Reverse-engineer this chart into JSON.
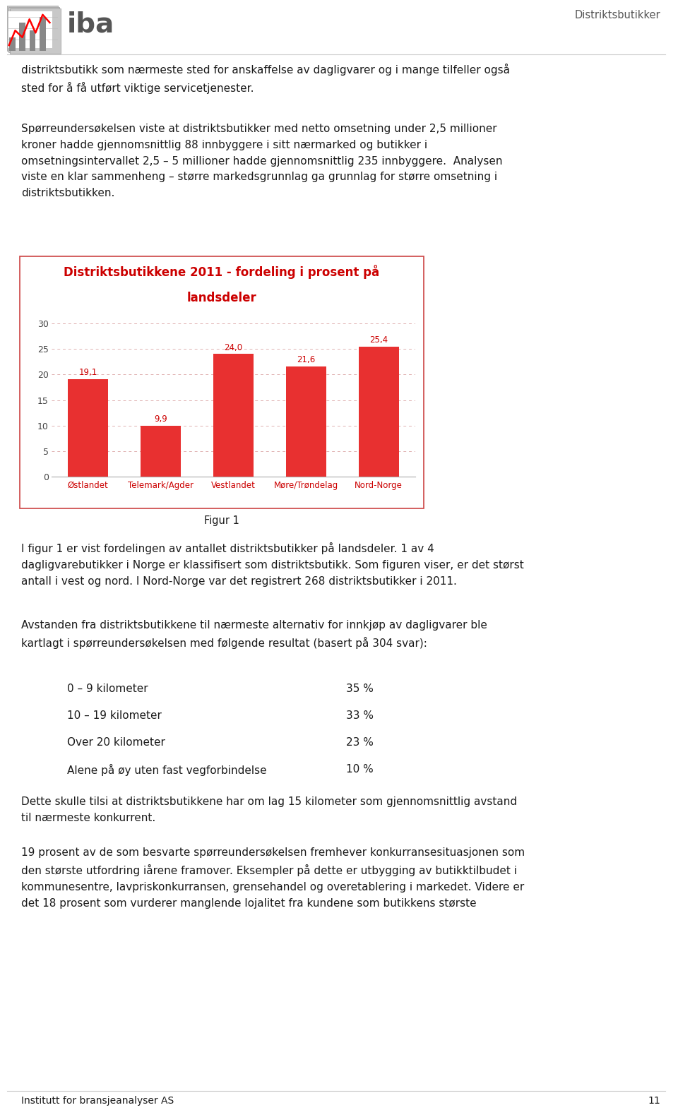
{
  "page_bg": "#ffffff",
  "header_right_text": "Distriktsbutikker",
  "header_line_color": "#cccccc",
  "para1": "distriktsbutikk som nærmeste sted for anskaffelse av dagligvarer og i mange tilfeller også\nsted for å få utført viktige servicetjenester.",
  "para2": "Spørreundersøkelsen viste at distriktsbutikker med netto omsetning under 2,5 millioner\nkroner hadde gjennomsnittlig 88 innbyggere i sitt nærmarked og butikker i\nomsetningsintervallet 2,5 – 5 millioner hadde gjennomsnittlig 235 innbyggere.  Analysen\nviste en klar sammenheng – større markedsgrunnlag ga grunnlag for større omsetning i\ndistriktsbutikken.",
  "chart_title_line1": "Distriktsbutikkene 2011 - fordeling i prosent på",
  "chart_title_line2": "landsdeler",
  "chart_title_color": "#cc0000",
  "categories": [
    "Østlandet",
    "Telemark/Agder",
    "Vestlandet",
    "Møre/Trøndelag",
    "Nord-Norge"
  ],
  "values": [
    19.1,
    9.9,
    24.0,
    21.6,
    25.4
  ],
  "bar_color": "#e83030",
  "chart_border_color": "#cc4444",
  "chart_bg": "#ffffff",
  "grid_color": "#e0b0b0",
  "yticks": [
    0,
    5,
    10,
    15,
    20,
    25,
    30
  ],
  "ylim": [
    0,
    30
  ],
  "figur_label": "Figur 1",
  "para3": "I figur 1 er vist fordelingen av antallet distriktsbutikker på landsdeler. 1 av 4\ndagligvarebutikker i Norge er klassifisert som distriktsbutikk. Som figuren viser, er det størst\nantall i vest og nord. I Nord-Norge var det registrert 268 distriktsbutikker i 2011.",
  "para4": "Avstanden fra distriktsbutikkene til nærmeste alternativ for innkjøp av dagligvarer ble\nkartlagt i spørreundersøkelsen med følgende resultat (basert på 304 svar):",
  "distance_items": [
    {
      "label": "0 – 9 kilometer",
      "value": "35 %"
    },
    {
      "label": "10 – 19 kilometer",
      "value": "33 %"
    },
    {
      "label": "Over 20 kilometer",
      "value": "23 %"
    },
    {
      "label": "Alene på øy uten fast vegforbindelse",
      "value": "10 %"
    }
  ],
  "para5": "Dette skulle tilsi at distriktsbutikkene har om lag 15 kilometer som gjennomsnittlig avstand\ntil nærmeste konkurrent.",
  "para6": "19 prosent av de som besvarte spørreundersøkelsen fremhever konkurransesituasjonen som\nden største utfordring iårene framover. Eksempler på dette er utbygging av butikktilbudet i\nkommunesentre, lavpriskonkurransen, grensehandel og overetablering i markedet. Videre er\ndet 18 prosent som vurderer manglende lojalitet fra kundene som butikkens største",
  "footer_text": "Institutt for bransjeanalyser AS",
  "footer_page": "11",
  "footer_line_color": "#cccccc",
  "text_color": "#1a1a1a",
  "text_fontsize": 11.0,
  "label_indent": 95,
  "value_indent": 490
}
